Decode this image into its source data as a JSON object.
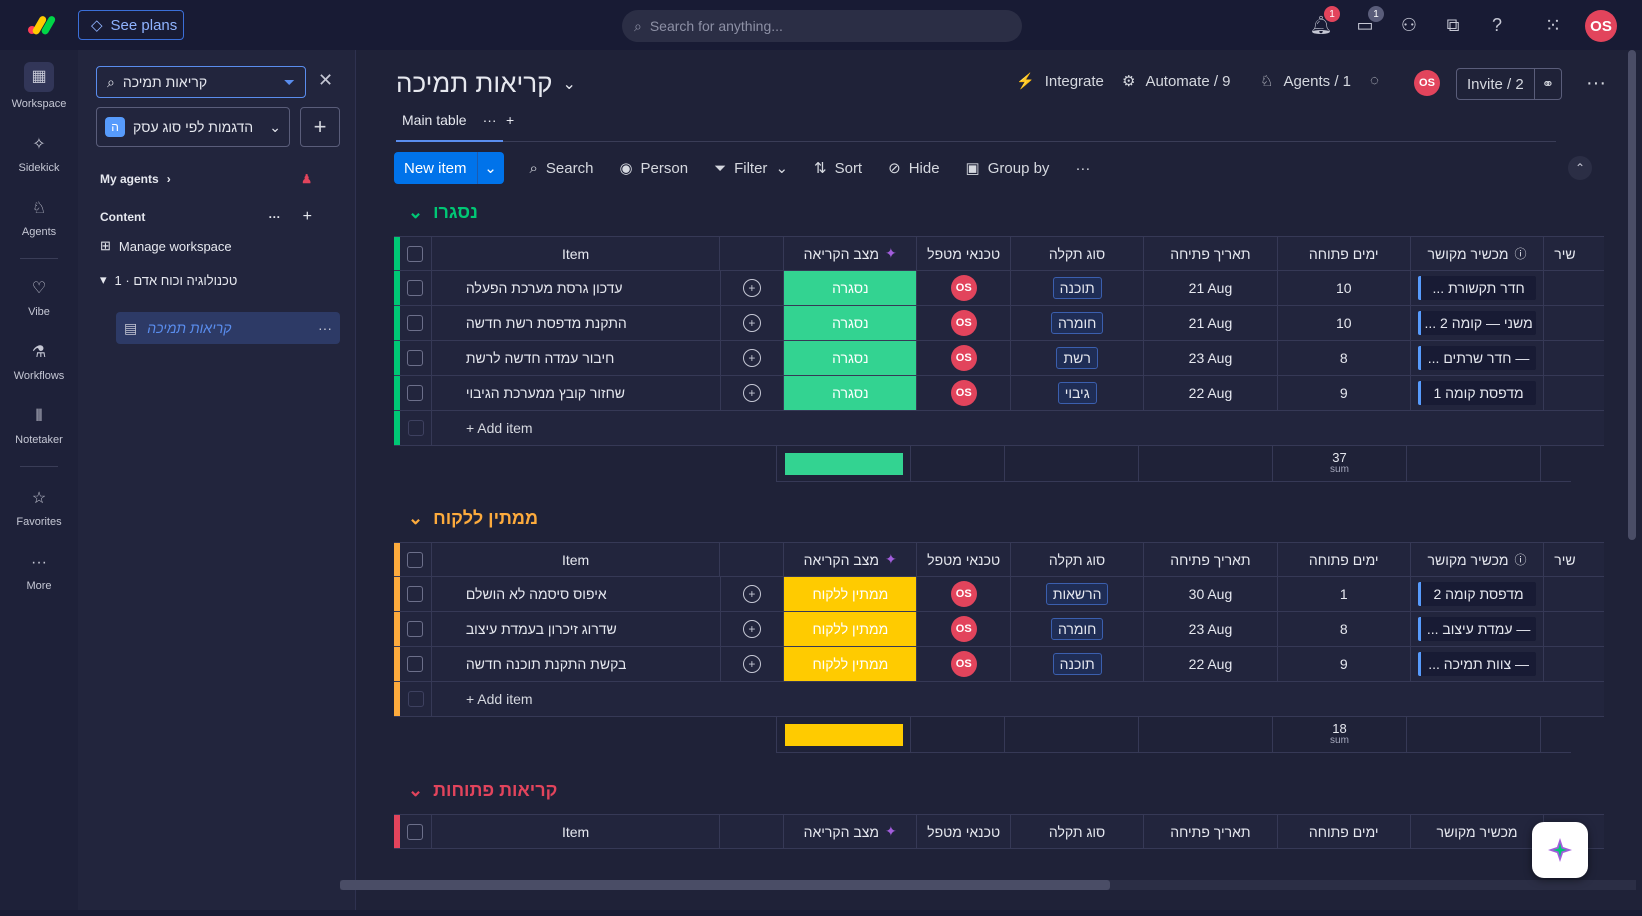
{
  "topbar": {
    "see_plans": "See plans",
    "search_placeholder": "Search for anything...",
    "notifications_count": "1",
    "inbox_count": "1",
    "user_initials": "OS"
  },
  "rail": {
    "workspace": "Workspace",
    "sidekick": "Sidekick",
    "agents": "Agents",
    "vibe": "Vibe",
    "workflows": "Workflows",
    "notetaker": "Notetaker",
    "favorites": "Favorites",
    "more": "More"
  },
  "sidebar": {
    "search_value": "קריאות תמיכה",
    "workspace_name": "הדגמות לפי סוג עסק",
    "workspace_initial": "ה",
    "my_agents": "My agents",
    "content": "Content",
    "manage_workspace": "Manage workspace",
    "folder": "1 · טכנולוגיה וכוח אדם",
    "board": "קריאות תמיכה"
  },
  "board": {
    "title": "קריאות תמיכה",
    "integrate": "Integrate",
    "automate": "Automate / 9",
    "agents": "Agents / 1",
    "avatar": "OS",
    "invite": "Invite / 2",
    "tab_main": "Main table",
    "toolbar": {
      "new_item": "New item",
      "search": "Search",
      "person": "Person",
      "filter": "Filter",
      "sort": "Sort",
      "hide": "Hide",
      "group_by": "Group by"
    }
  },
  "columns": {
    "item": "Item",
    "status": "מצב הקריאה",
    "tech": "טכנאי מטפל",
    "type": "סוג תקלה",
    "date": "תאריך פתיחה",
    "days": "ימים פתוחה",
    "device": "מכשיר מקושר",
    "more": "שיר"
  },
  "groups": [
    {
      "title": "נסגרו",
      "color": "#00c875",
      "status_color": "#33d391",
      "rows": [
        {
          "name": "עדכון גרסת מערכת הפעלה",
          "status": "נסגרה",
          "tech": "OS",
          "type": "תוכנה",
          "date": "21 Aug",
          "days": "10",
          "device": "... חדר תקשורת"
        },
        {
          "name": "התקנת מדפסת רשת חדשה",
          "status": "נסגרה",
          "tech": "OS",
          "type": "חומרה",
          "date": "21 Aug",
          "days": "10",
          "device": "... משני — קומה 2"
        },
        {
          "name": "חיבור עמדה חדשה לרשת",
          "status": "נסגרה",
          "tech": "OS",
          "type": "רשת",
          "date": "23 Aug",
          "days": "8",
          "device": "... חדר שרתים —"
        },
        {
          "name": "שחזור קובץ ממערכת הגיבוי",
          "status": "נסגרה",
          "tech": "OS",
          "type": "גיבוי",
          "date": "22 Aug",
          "days": "9",
          "device": "מדפסת קומה 1"
        }
      ],
      "add_item": "+ Add item",
      "sum": "37",
      "sum_label": "sum"
    },
    {
      "title": "ממתין ללקוח",
      "color": "#fdab3d",
      "status_color": "#ffcb00",
      "rows": [
        {
          "name": "איפוס סיסמה לא הושלם",
          "status": "ממתין ללקוח",
          "tech": "OS",
          "type": "הרשאות",
          "date": "30 Aug",
          "days": "1",
          "device": "מדפסת קומה 2"
        },
        {
          "name": "שדרוג זיכרון בעמדת עיצוב",
          "status": "ממתין ללקוח",
          "tech": "OS",
          "type": "חומרה",
          "date": "23 Aug",
          "days": "8",
          "device": "... עמדת עיצוב —"
        },
        {
          "name": "בקשת התקנת תוכנה חדשה",
          "status": "ממתין ללקוח",
          "tech": "OS",
          "type": "תוכנה",
          "date": "22 Aug",
          "days": "9",
          "device": "... צוות תמיכה —"
        }
      ],
      "add_item": "+ Add item",
      "sum": "18",
      "sum_label": "sum"
    },
    {
      "title": "קריאות פתוחות",
      "color": "#e2445c"
    }
  ]
}
